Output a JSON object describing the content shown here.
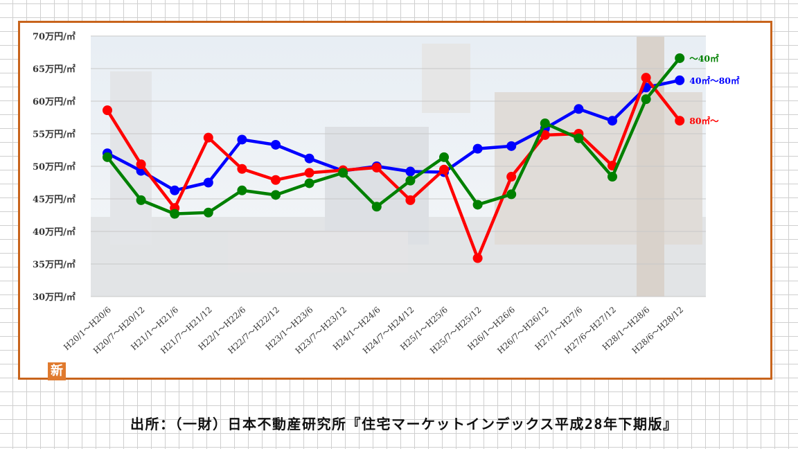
{
  "chart_data": {
    "type": "line",
    "y_unit_suffix": "万円/㎡",
    "ylim": [
      30,
      70
    ],
    "y_ticks": [
      30,
      35,
      40,
      45,
      50,
      55,
      60,
      65,
      70
    ],
    "grid": "horizontal",
    "legend": "line-end labels (right)",
    "categories": [
      "H20/1～H20/6",
      "H20/7～H20/12",
      "H21/1～H21/6",
      "H21/7～H21/12",
      "H22/1～H22/6",
      "H22/7～H22/12",
      "H23/1～H23/6",
      "H23/7～H23/12",
      "H24/1～H24/6",
      "H24/7～H24/12",
      "H25/1～H25/6",
      "H25/7～H25/12",
      "H26/1～H26/6",
      "H26/7～H26/12",
      "H27/1～H27/6",
      "H27/6～H27/12",
      "H28/1～H28/6",
      "H28/6～H28/12"
    ],
    "series": [
      {
        "name": "40㎡～80㎡",
        "color": "#0000ff",
        "values": [
          52.0,
          49.3,
          46.3,
          47.5,
          54.1,
          53.3,
          51.2,
          49.3,
          50.0,
          49.2,
          49.1,
          52.7,
          53.1,
          55.8,
          58.8,
          57.0,
          62.1,
          63.2
        ]
      },
      {
        "name": "80㎡～",
        "color": "#ff0000",
        "values": [
          58.6,
          50.3,
          43.6,
          54.4,
          49.6,
          47.9,
          49.0,
          49.4,
          49.8,
          44.8,
          49.5,
          35.9,
          48.4,
          54.8,
          55.0,
          50.1,
          63.6,
          57.0
        ]
      },
      {
        "name": "～40㎡",
        "color": "#008000",
        "values": [
          51.4,
          44.8,
          42.7,
          42.9,
          46.3,
          45.6,
          47.4,
          49.0,
          43.8,
          47.8,
          51.4,
          44.1,
          45.7,
          56.6,
          54.3,
          48.4,
          60.3,
          66.6
        ]
      }
    ]
  },
  "badge": "新",
  "source": "出所：（一財）日本不動産研究所『住宅マーケットインデックス平成28年下期版』"
}
